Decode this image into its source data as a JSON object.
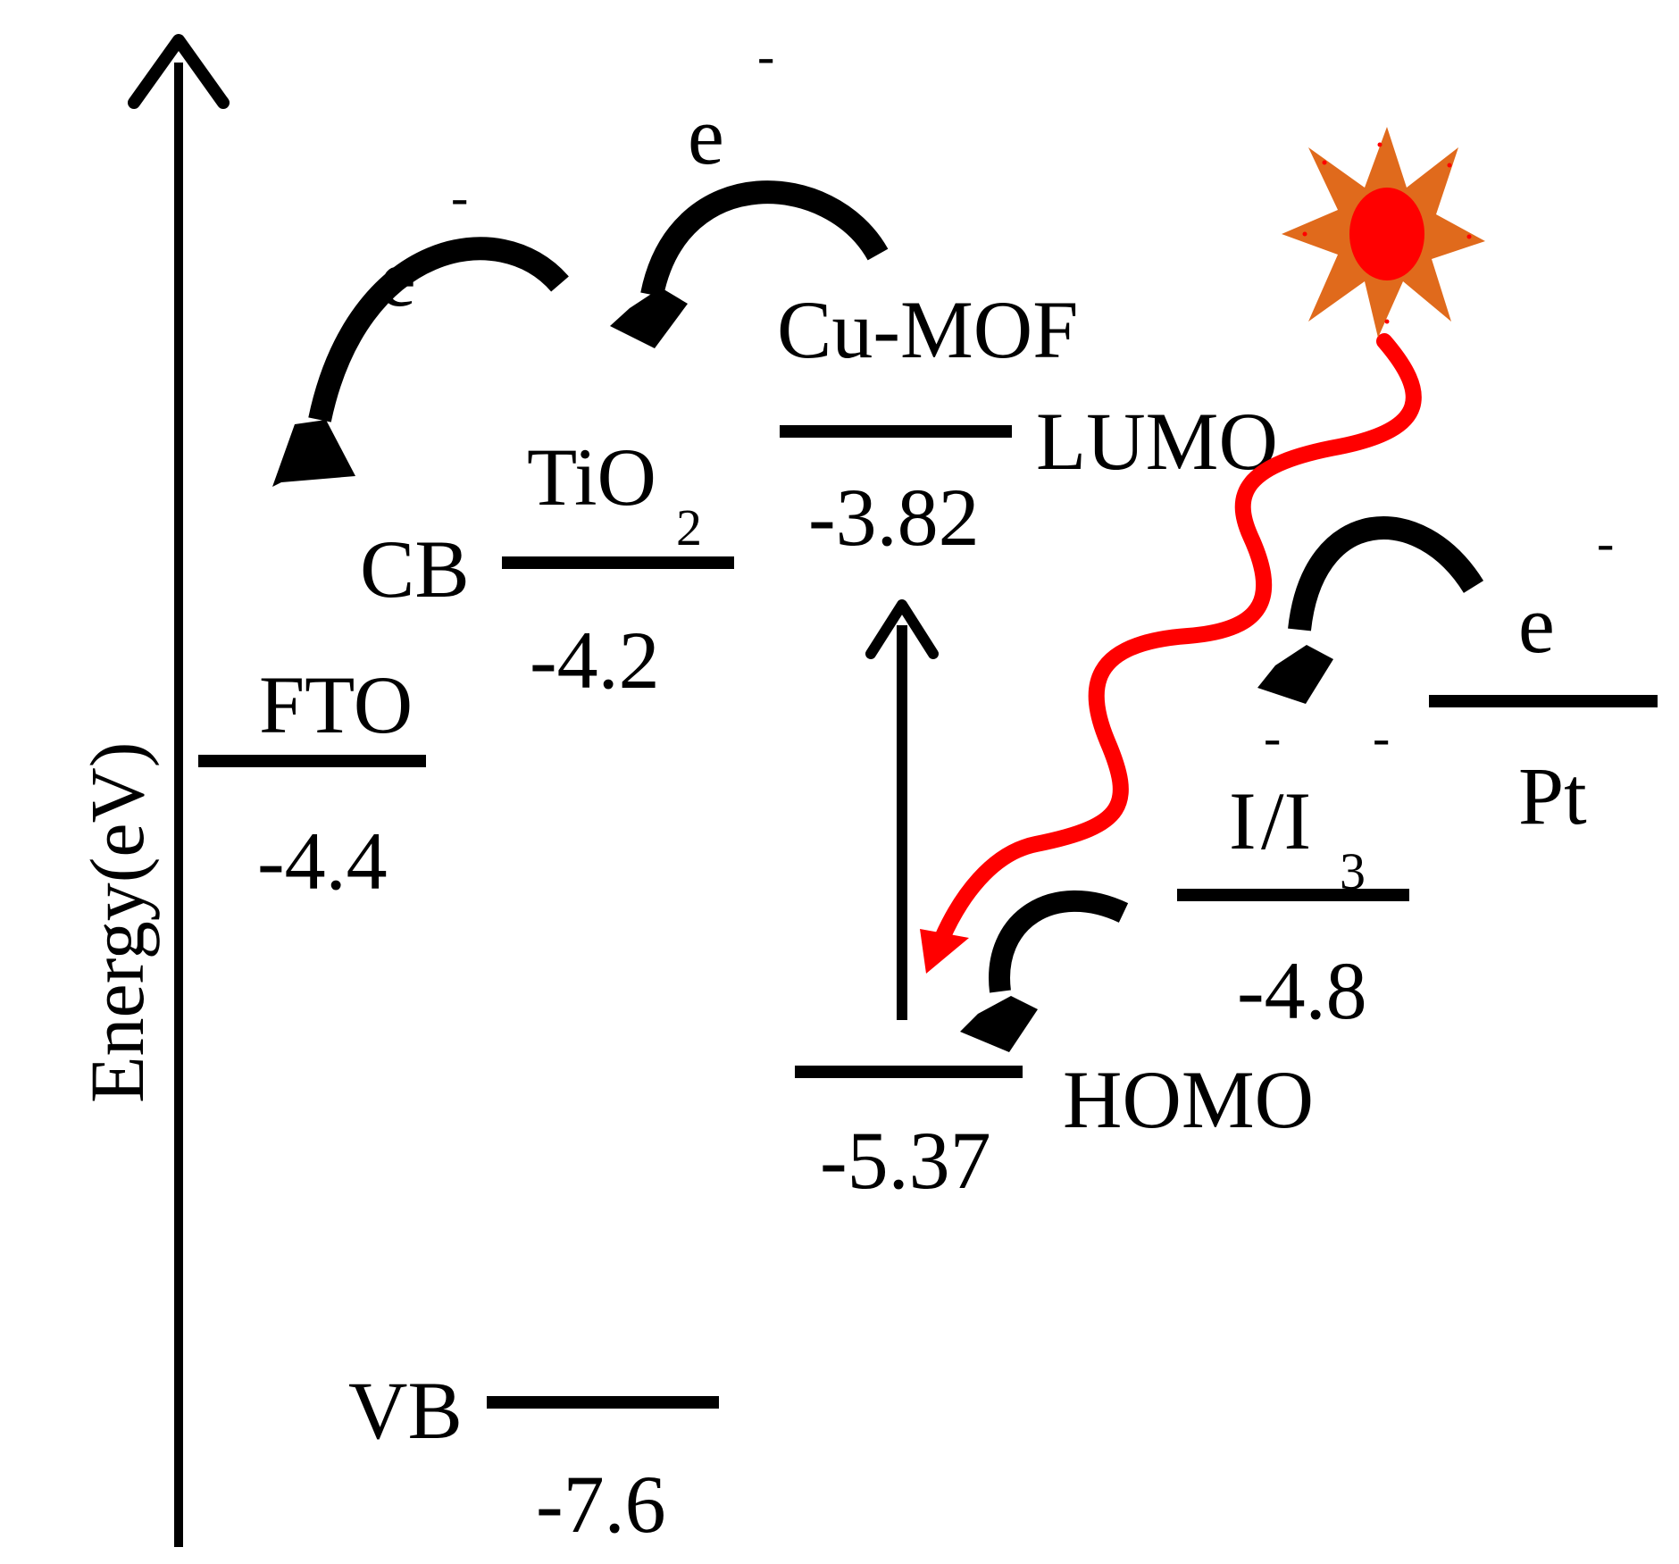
{
  "axis": {
    "label": "Energy(eV)"
  },
  "levels": {
    "fto": {
      "name": "FTO",
      "value": "-4.4"
    },
    "tio2": {
      "name": "TiO",
      "subscript": "2",
      "cb_label": "CB",
      "cb_value": "-4.2",
      "vb_label": "VB",
      "vb_value": "-7.6"
    },
    "cumof": {
      "name": "Cu-MOF",
      "lumo_label": "LUMO",
      "lumo_value": "-3.82",
      "homo_label": "HOMO",
      "homo_value": "-5.37"
    },
    "redox": {
      "name_part1": "I",
      "sup1": "-",
      "name_part2": "/I",
      "subscript": "3",
      "sup2": "-",
      "value": "-4.8"
    },
    "pt": {
      "name": "Pt"
    }
  },
  "electrons": {
    "symbol": "e",
    "charge": "-"
  },
  "colors": {
    "line": "#000000",
    "light_path": "#ff0000",
    "sun_rays": "#e06a1c",
    "sun_core": "#ff0000"
  }
}
